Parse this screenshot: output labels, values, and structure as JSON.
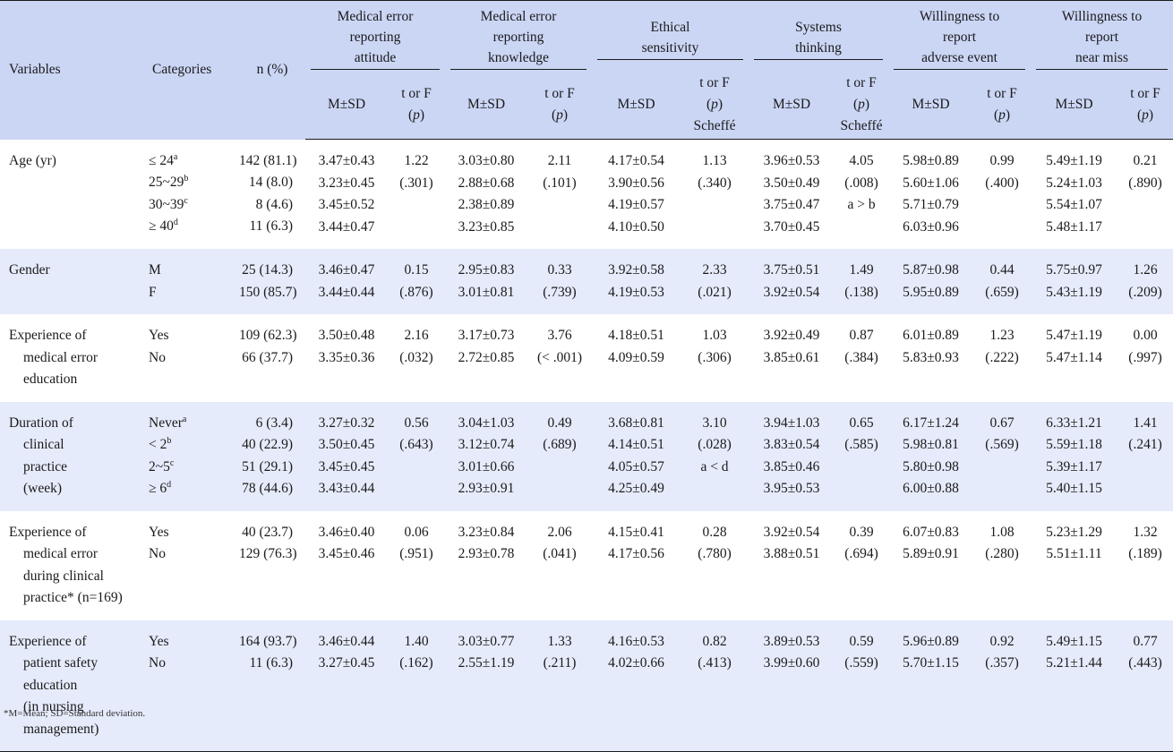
{
  "header": {
    "variables": "Variables",
    "categories": "Categories",
    "n": "n (%)",
    "groups": [
      {
        "lines": [
          "Medical error",
          "reporting",
          "attitude"
        ],
        "m": "M±SD",
        "t": [
          "t or F",
          "(p)"
        ]
      },
      {
        "lines": [
          "Medical error",
          "reporting",
          "knowledge"
        ],
        "m": "M±SD",
        "t": [
          "t or F",
          "(p)"
        ]
      },
      {
        "lines": [
          "Ethical",
          "sensitivity"
        ],
        "m": "M±SD",
        "t": [
          "t or F",
          "(p)",
          "Scheffé"
        ]
      },
      {
        "lines": [
          "Systems",
          "thinking"
        ],
        "m": "M±SD",
        "t": [
          "t or F",
          "(p)",
          "Scheffé"
        ]
      },
      {
        "lines": [
          "Willingness to",
          "report",
          "adverse event"
        ],
        "m": "M±SD",
        "t": [
          "t or F",
          "(p)"
        ]
      },
      {
        "lines": [
          "Willingness to",
          "report",
          "near miss"
        ],
        "m": "M±SD",
        "t": [
          "t or F",
          "(p)"
        ]
      }
    ]
  },
  "rows": [
    {
      "variable": [
        "Age (yr)"
      ],
      "categories": [
        "≤ 24|a",
        "25~29|b",
        "30~39|c",
        "≥ 40|d"
      ],
      "n": [
        "142 (81.1)",
        "14 (8.0)",
        "8 (4.6)",
        "11 (6.3)"
      ],
      "stats": [
        {
          "m": [
            "3.47±0.43",
            "3.23±0.45",
            "3.45±0.52",
            "3.44±0.47"
          ],
          "t": [
            "1.22",
            "(.301)"
          ]
        },
        {
          "m": [
            "3.03±0.80",
            "2.88±0.68",
            "2.38±0.89",
            "3.23±0.85"
          ],
          "t": [
            "2.11",
            "(.101)"
          ]
        },
        {
          "m": [
            "4.17±0.54",
            "3.90±0.56",
            "4.19±0.57",
            "4.10±0.50"
          ],
          "t": [
            "1.13",
            "(.340)"
          ]
        },
        {
          "m": [
            "3.96±0.53",
            "3.50±0.49",
            "3.75±0.47",
            "3.70±0.45"
          ],
          "t": [
            "4.05",
            "(.008)",
            "a > b"
          ]
        },
        {
          "m": [
            "5.98±0.89",
            "5.60±1.06",
            "5.71±0.79",
            "6.03±0.96"
          ],
          "t": [
            "0.99",
            "(.400)"
          ]
        },
        {
          "m": [
            "5.49±1.19",
            "5.24±1.03",
            "5.54±1.07",
            "5.48±1.17"
          ],
          "t": [
            "0.21",
            "(.890)"
          ]
        }
      ]
    },
    {
      "variable": [
        "Gender"
      ],
      "categories": [
        "M",
        "F"
      ],
      "n": [
        "25 (14.3)",
        "150 (85.7)"
      ],
      "stats": [
        {
          "m": [
            "3.46±0.47",
            "3.44±0.44"
          ],
          "t": [
            "0.15",
            "(.876)"
          ]
        },
        {
          "m": [
            "2.95±0.83",
            "3.01±0.81"
          ],
          "t": [
            "0.33",
            "(.739)"
          ]
        },
        {
          "m": [
            "3.92±0.58",
            "4.19±0.53"
          ],
          "t": [
            "2.33",
            "(.021)"
          ]
        },
        {
          "m": [
            "3.75±0.51",
            "3.92±0.54"
          ],
          "t": [
            "1.49",
            "(.138)"
          ]
        },
        {
          "m": [
            "5.87±0.98",
            "5.95±0.89"
          ],
          "t": [
            "0.44",
            "(.659)"
          ]
        },
        {
          "m": [
            "5.75±0.97",
            "5.43±1.19"
          ],
          "t": [
            "1.26",
            "(.209)"
          ]
        }
      ]
    },
    {
      "variable": [
        "Experience of",
        "medical error",
        "education"
      ],
      "categories": [
        "Yes",
        "No"
      ],
      "n": [
        "109 (62.3)",
        "66 (37.7)"
      ],
      "stats": [
        {
          "m": [
            "3.50±0.48",
            "3.35±0.36"
          ],
          "t": [
            "2.16",
            "(.032)"
          ]
        },
        {
          "m": [
            "3.17±0.73",
            "2.72±0.85"
          ],
          "t": [
            "3.76",
            "(< .001)"
          ]
        },
        {
          "m": [
            "4.18±0.51",
            "4.09±0.59"
          ],
          "t": [
            "1.03",
            "(.306)"
          ]
        },
        {
          "m": [
            "3.92±0.49",
            "3.85±0.61"
          ],
          "t": [
            "0.87",
            "(.384)"
          ]
        },
        {
          "m": [
            "6.01±0.89",
            "5.83±0.93"
          ],
          "t": [
            "1.23",
            "(.222)"
          ]
        },
        {
          "m": [
            "5.47±1.19",
            "5.47±1.14"
          ],
          "t": [
            "0.00",
            "(.997)"
          ]
        }
      ]
    },
    {
      "variable": [
        "Duration of",
        "clinical",
        "practice",
        "(week)"
      ],
      "categories": [
        "Never|a",
        "< 2|b",
        "2~5|c",
        "≥ 6|d"
      ],
      "n": [
        "6 (3.4)",
        "40 (22.9)",
        "51 (29.1)",
        "78 (44.6)"
      ],
      "stats": [
        {
          "m": [
            "3.27±0.32",
            "3.50±0.45",
            "3.45±0.45",
            "3.43±0.44"
          ],
          "t": [
            "0.56",
            "(.643)"
          ]
        },
        {
          "m": [
            "3.04±1.03",
            "3.12±0.74",
            "3.01±0.66",
            "2.93±0.91"
          ],
          "t": [
            "0.49",
            "(.689)"
          ]
        },
        {
          "m": [
            "3.68±0.81",
            "4.14±0.51",
            "4.05±0.57",
            "4.25±0.49"
          ],
          "t": [
            "3.10",
            "(.028)",
            "a < d"
          ]
        },
        {
          "m": [
            "3.94±1.03",
            "3.83±0.54",
            "3.85±0.46",
            "3.95±0.53"
          ],
          "t": [
            "0.65",
            "(.585)"
          ]
        },
        {
          "m": [
            "6.17±1.24",
            "5.98±0.81",
            "5.80±0.98",
            "6.00±0.88"
          ],
          "t": [
            "0.67",
            "(.569)"
          ]
        },
        {
          "m": [
            "6.33±1.21",
            "5.59±1.18",
            "5.39±1.17",
            "5.40±1.15"
          ],
          "t": [
            "1.41",
            "(.241)"
          ]
        }
      ]
    },
    {
      "variable": [
        "Experience of",
        "medical error",
        "during clinical",
        "practice* (n=169)"
      ],
      "categories": [
        "Yes",
        "No"
      ],
      "n": [
        "40 (23.7)",
        "129 (76.3)"
      ],
      "stats": [
        {
          "m": [
            "3.46±0.40",
            "3.45±0.46"
          ],
          "t": [
            "0.06",
            "(.951)"
          ]
        },
        {
          "m": [
            "3.23±0.84",
            "2.93±0.78"
          ],
          "t": [
            "2.06",
            "(.041)"
          ]
        },
        {
          "m": [
            "4.15±0.41",
            "4.17±0.56"
          ],
          "t": [
            "0.28",
            "(.780)"
          ]
        },
        {
          "m": [
            "3.92±0.54",
            "3.88±0.51"
          ],
          "t": [
            "0.39",
            "(.694)"
          ]
        },
        {
          "m": [
            "6.07±0.83",
            "5.89±0.91"
          ],
          "t": [
            "1.08",
            "(.280)"
          ]
        },
        {
          "m": [
            "5.23±1.29",
            "5.51±1.11"
          ],
          "t": [
            "1.32",
            "(.189)"
          ]
        }
      ]
    },
    {
      "variable": [
        "Experience of",
        "patient safety",
        "education",
        "(in nursing",
        "management)"
      ],
      "categories": [
        "Yes",
        "No"
      ],
      "n": [
        "164 (93.7)",
        "11 (6.3)"
      ],
      "stats": [
        {
          "m": [
            "3.46±0.44",
            "3.27±0.45"
          ],
          "t": [
            "1.40",
            "(.162)"
          ]
        },
        {
          "m": [
            "3.03±0.77",
            "2.55±1.19"
          ],
          "t": [
            "1.33",
            "(.211)"
          ]
        },
        {
          "m": [
            "4.16±0.53",
            "4.02±0.66"
          ],
          "t": [
            "0.82",
            "(.413)"
          ]
        },
        {
          "m": [
            "3.89±0.53",
            "3.99±0.60"
          ],
          "t": [
            "0.59",
            "(.559)"
          ]
        },
        {
          "m": [
            "5.96±0.89",
            "5.70±1.15"
          ],
          "t": [
            "0.92",
            "(.357)"
          ]
        },
        {
          "m": [
            "5.49±1.15",
            "5.21±1.44"
          ],
          "t": [
            "0.77",
            "(.443)"
          ]
        }
      ]
    }
  ],
  "footnote": "*M=Mean; SD=Standard deviation."
}
